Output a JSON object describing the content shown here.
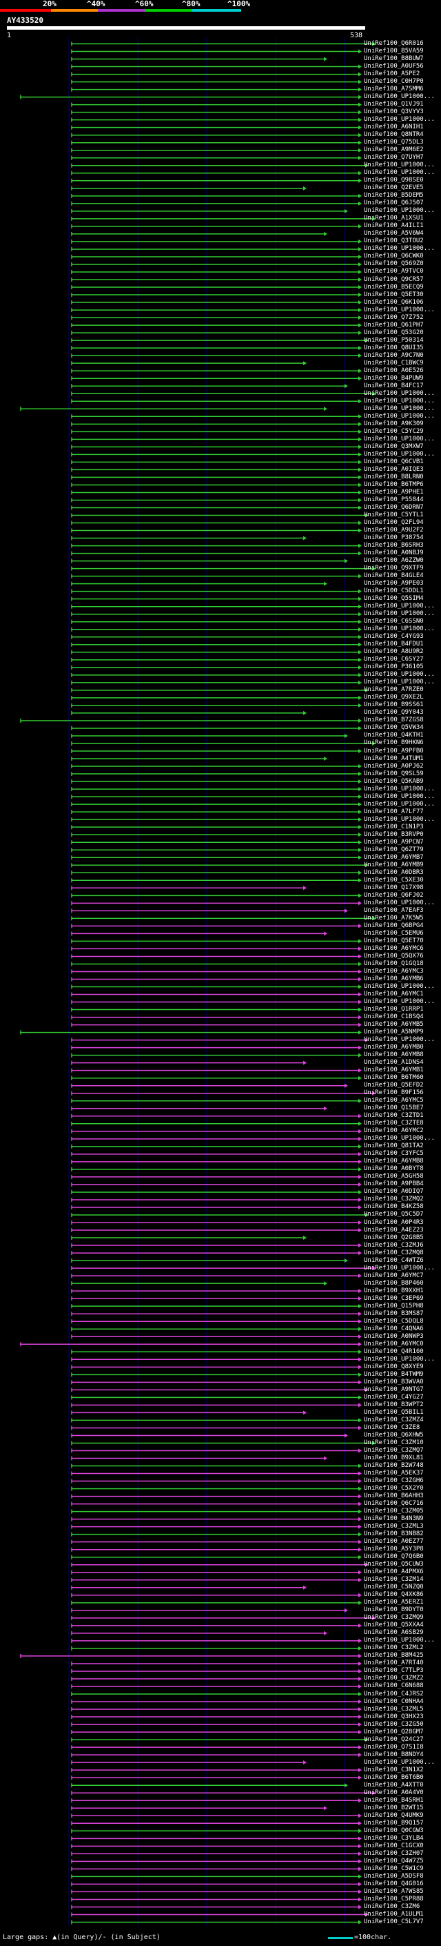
{
  "legend": {
    "labels": [
      "20%",
      "^40%",
      "^60%",
      "^80%",
      "^100%"
    ],
    "colors": [
      "#ff0000",
      "#ff8800",
      "#aa33cc",
      "#00cc00",
      "#00cccc"
    ]
  },
  "query": {
    "title": "AY433520",
    "tick_start": "1",
    "tick_end": "538"
  },
  "colors": {
    "green": "#33cc33",
    "magenta": "#dd44dd",
    "grid": "#000066",
    "background": "#000000"
  },
  "hits": [
    "UniRef100_Q6R016",
    "UniRef100_B5VA59",
    "UniRef100_B8BUW7",
    "UniRef100_A0UF56",
    "UniRef100_A5PE2",
    "UniRef100_C0H7P0",
    "UniRef100_A7SMM6",
    "UniRef100_UP1000...",
    "UniRef100_Q1VJ91",
    "UniRef100_Q3VYV3",
    "UniRef100_UP1000...",
    "UniRef100_A6NIH1",
    "UniRef100_Q8NTR4",
    "UniRef100_Q75DL3",
    "UniRef100_A9M6E2",
    "UniRef100_Q7UYH7",
    "UniRef100_UP1000...",
    "UniRef100_UP1000...",
    "UniRef100_Q98SE0",
    "UniRef100_Q2EVE5",
    "UniRef100_B5DEM5",
    "UniRef100_Q6J507",
    "UniRef100_UP1000...",
    "UniRef100_A1XSU1",
    "UniRef100_A4ILI1",
    "UniRef100_A5V6W4",
    "UniRef100_Q3TOU2",
    "UniRef100_UP1000...",
    "UniRef100_Q6CWK0",
    "UniRef100_Q569Z0",
    "UniRef100_A9TVC0",
    "UniRef100_Q9CR57",
    "UniRef100_B5ECQ9",
    "UniRef100_Q5ET30",
    "UniRef100_Q6K106",
    "UniRef100_UP1000...",
    "UniRef100_Q7Z752",
    "UniRef100_Q61PH7",
    "UniRef100_Q53G20",
    "UniRef100_P50314",
    "UniRef100_Q8UI35",
    "UniRef100_A9C7N0",
    "UniRef100_C1BWC9",
    "UniRef100_A0E526",
    "UniRef100_B4PUW9",
    "UniRef100_B4FC17",
    "UniRef100_UP1000...",
    "UniRef100_UP1000...",
    "UniRef100_UP1000...",
    "UniRef100_UP1000...",
    "UniRef100_A9K309",
    "UniRef100_C5YC29",
    "UniRef100_UP1000...",
    "UniRef100_Q3MXW7",
    "UniRef100_UP1000...",
    "UniRef100_Q6CVB1",
    "UniRef100_A0IQE3",
    "UniRef100_B8LRN0",
    "UniRef100_B6TMP6",
    "UniRef100_A9PHE1",
    "UniRef100_P55844",
    "UniRef100_Q6DRN7",
    "UniRef100_C5YTL1",
    "UniRef100_Q2FL94",
    "UniRef100_A9U2F2",
    "UniRef100_P38754",
    "UniRef100_B6SRH3",
    "UniRef100_A0NBJ9",
    "UniRef100_A6ZZW0",
    "UniRef100_Q9XTF9",
    "UniRef100_B4GLE4",
    "UniRef100_A9PE03",
    "UniRef100_C5DDL1",
    "UniRef100_Q5SIM4",
    "UniRef100_UP1000...",
    "UniRef100_UP1000...",
    "UniRef100_C6SSN0",
    "UniRef100_UP1000...",
    "UniRef100_C4YG93",
    "UniRef100_B4FDU1",
    "UniRef100_A8U9R2",
    "UniRef100_C6SY27",
    "UniRef100_P36105",
    "UniRef100_UP1000...",
    "UniRef100_UP1000...",
    "UniRef100_A7RZE0",
    "UniRef100_Q9XE2L",
    "UniRef100_B9SS61",
    "UniRef100_Q9Y043",
    "UniRef100_B7ZGS8",
    "UniRef100_Q5VW34",
    "UniRef100_Q4KTH1",
    "UniRef100_B9HKN6",
    "UniRef100_A9PFB0",
    "UniRef100_A4TUM1",
    "UniRef100_A0PJ62",
    "UniRef100_Q9SL59",
    "UniRef100_Q5KAB9",
    "UniRef100_UP1000...",
    "UniRef100_UP1000...",
    "UniRef100_UP1000...",
    "UniRef100_A7LF77",
    "UniRef100_UP1000...",
    "UniRef100_C1N1P3",
    "UniRef100_B3RVP0",
    "UniRef100_A9PCN7",
    "UniRef100_Q6ZT79",
    "UniRef100_A6YMB7",
    "UniRef100_A6YMB9",
    "UniRef100_A0DBR3",
    "UniRef100_C5XE30",
    "UniRef100_Q17X98",
    "UniRef100_Q6FJ02",
    "UniRef100_UP1000...",
    "UniRef100_A7EAF3",
    "UniRef100_A7K5W5",
    "UniRef100_Q6BPG4",
    "UniRef100_C5EMU6",
    "UniRef100_Q5ET70",
    "UniRef100_A6YMC6",
    "UniRef100_Q5QX76",
    "UniRef100_Q1GQ18",
    "UniRef100_A6YMC3",
    "UniRef100_A6YMB6",
    "UniRef100_UP1000...",
    "UniRef100_A6YMC1",
    "UniRef100_UP1000...",
    "UniRef100_Q1RRP1",
    "UniRef100_C1BSQ4",
    "UniRef100_A6YMB5",
    "UniRef100_A5NMP9",
    "UniRef100_UP1000...",
    "UniRef100_A6YMB0",
    "UniRef100_A6YMB8",
    "UniRef100_A1DNS4",
    "UniRef100_A6YMB1",
    "UniRef100_B6TM60",
    "UniRef100_Q5EFD2",
    "UniRef100_B9F156",
    "UniRef100_A6YMC5",
    "UniRef100_Q15BE7",
    "UniRef100_C3ZTD1",
    "UniRef100_C3ZTE8",
    "UniRef100_A6YMC2",
    "UniRef100_UP1000...",
    "UniRef100_Q81TA2",
    "UniRef100_C3YFC5",
    "UniRef100_A6YMB8",
    "UniRef100_A0BYT8",
    "UniRef100_A5GH58",
    "UniRef100_A9PBB4",
    "UniRef100_A0DIQ7",
    "UniRef100_C3ZMQ2",
    "UniRef100_B4KZ58",
    "UniRef100_Q5C5D7",
    "UniRef100_A0P4R3",
    "UniRef100_A4EZ23",
    "UniRef100_Q2G8B5",
    "UniRef100_C3ZMJ6",
    "UniRef100_C3ZMQ8",
    "UniRef100_C4WTZ6",
    "UniRef100_UP1000...",
    "UniRef100_A6YMC7",
    "UniRef100_B8P460",
    "UniRef100_B9XXH1",
    "UniRef100_C3EP69",
    "UniRef100_Q15PH8",
    "UniRef100_B3MS87",
    "UniRef100_C5DQL8",
    "UniRef100_C4QNA6",
    "UniRef100_A0NWP3",
    "UniRef100_A6YMC0",
    "UniRef100_Q4R160",
    "UniRef100_UP1000...",
    "UniRef100_Q8XYE9",
    "UniRef100_B4TWM9",
    "UniRef100_B3WVA0",
    "UniRef100_A9NTG7",
    "UniRef100_C4YG27",
    "UniRef100_B3WPT2",
    "UniRef100_Q5BIL1",
    "UniRef100_C3ZMZ4",
    "UniRef100_C3ZE8",
    "UniRef100_Q6XHW5",
    "UniRef100_C3ZM10",
    "UniRef100_C3ZMQ7",
    "UniRef100_B9XL81",
    "UniRef100_B2W748",
    "UniRef100_A5EK37",
    "UniRef100_C3ZGH6",
    "UniRef100_C5X2Y0",
    "UniRef100_B6AHH3",
    "UniRef100_Q6C716",
    "UniRef100_C3ZM05",
    "UniRef100_B4N3N9",
    "UniRef100_C3ZML3",
    "UniRef100_B3NB82",
    "UniRef100_A0EZ77",
    "UniRef100_A5Y3P8",
    "UniRef100_Q7Q6B0",
    "UniRef100_Q5CUW3",
    "UniRef100_A4PMX6",
    "UniRef100_C3ZM14",
    "UniRef100_C5NZQ0",
    "UniRef100_Q4XK86",
    "UniRef100_A5ERZ1",
    "UniRef100_B9DYT0",
    "UniRef100_C3ZMQ9",
    "UniRef100_Q5XXA4",
    "UniRef100_A6SB29",
    "UniRef100_UP1000...",
    "UniRef100_C3ZML2",
    "UniRef100_B8M425",
    "UniRef100_A7RT40",
    "UniRef100_C7TLP3",
    "UniRef100_C3ZMZ2",
    "UniRef100_C6N688",
    "UniRef100_C4JRS2",
    "UniRef100_C0NHA4",
    "UniRef100_C3ZML5",
    "UniRef100_Q3HX23",
    "UniRef100_C3ZG50",
    "UniRef100_Q28GM7",
    "UniRef100_Q24C27",
    "UniRef100_Q7S1I8",
    "UniRef100_B8NDY4",
    "UniRef100_UP1000...",
    "UniRef100_C3N1X2",
    "UniRef100_B6T6B0",
    "UniRef100_A4XTT0",
    "UniRef100_A0A4V0",
    "UniRef100_B4SRH1",
    "UniRef100_B2WT15",
    "UniRef100_Q4UMK9",
    "UniRef100_B9Q157",
    "UniRef100_Q0CGW3",
    "UniRef100_C3YLB4",
    "UniRef100_C1GCX0",
    "UniRef100_C3ZH07",
    "UniRef100_Q4W7Z5",
    "UniRef100_C5W1C9",
    "UniRef100_A5DSF8",
    "UniRef100_Q4G016",
    "UniRef100_A7WS85",
    "UniRef100_C5PR88",
    "UniRef100_C3ZM6",
    "UniRef100_A1ULM1",
    "UniRef100_C5L7V7"
  ],
  "footer": {
    "large_gaps": "Large gaps: ▲(in Query)/- (in Subject)",
    "scale": "=100char."
  }
}
